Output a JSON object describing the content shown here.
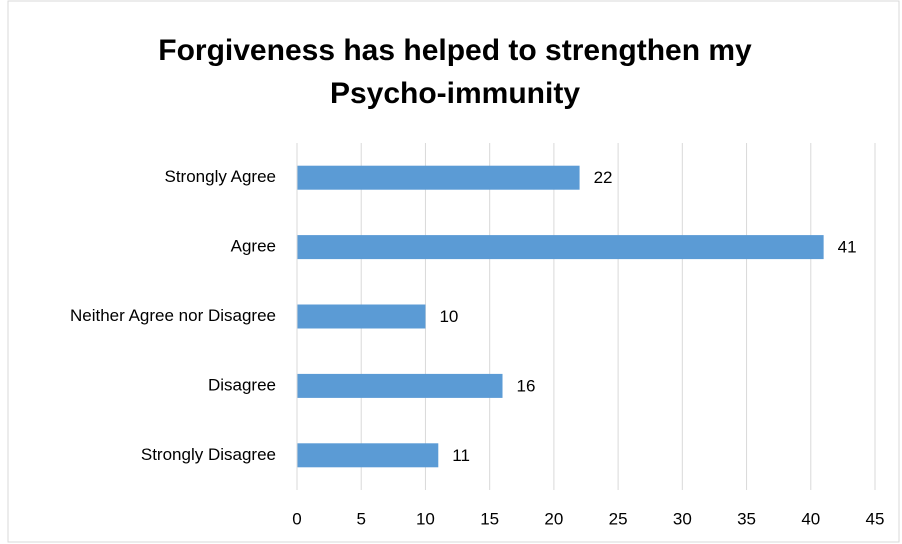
{
  "chart_data": {
    "type": "barh",
    "title": [
      "Forgiveness has helped to strengthen my",
      "Psycho-immunity"
    ],
    "categories": [
      "Strongly Agree",
      "Agree",
      "Neither Agree nor Disagree",
      "Disagree",
      "Strongly Disagree"
    ],
    "values": [
      22,
      41,
      10,
      16,
      11
    ],
    "color": "#5b9bd5",
    "xlim": [
      0,
      45
    ],
    "xticks": [
      0,
      5,
      10,
      15,
      20,
      25,
      30,
      35,
      40,
      45
    ],
    "grid": true
  }
}
